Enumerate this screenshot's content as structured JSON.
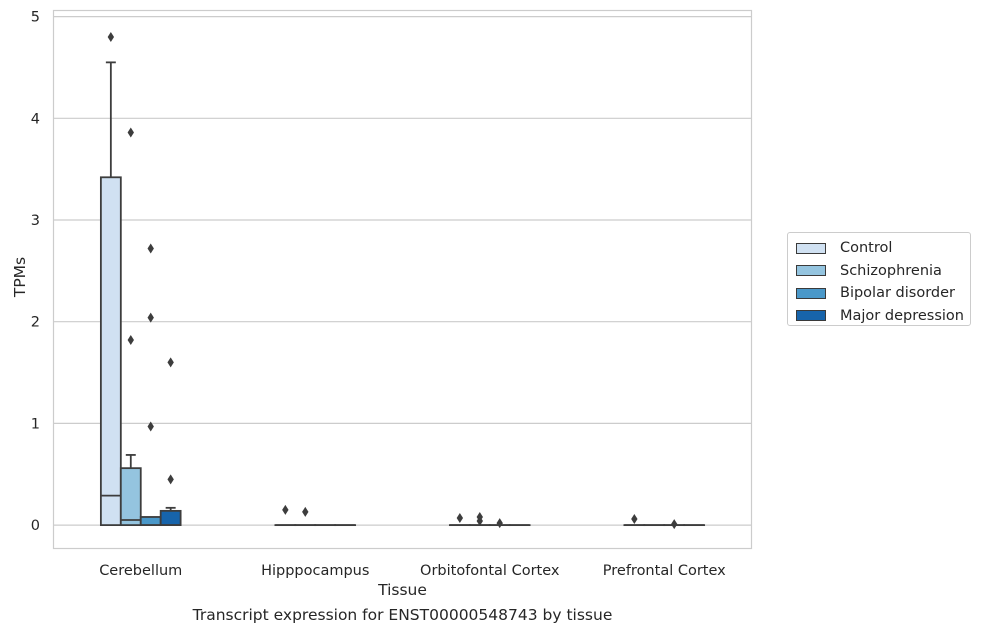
{
  "chart_data": {
    "type": "boxplot",
    "title": "Transcript expression for ENST00000548743 by tissue",
    "xlabel": "Tissue",
    "ylabel": "TPMs",
    "ylim": [
      -0.23,
      5.06
    ],
    "yticks": [
      0,
      1,
      2,
      3,
      4,
      5
    ],
    "categories": [
      "Cerebellum",
      "Hipppocampus",
      "Orbitofontal Cortex",
      "Prefrontal Cortex"
    ],
    "legend_position": "right",
    "grid": true,
    "series": [
      {
        "name": "Control",
        "color": "#d0e1f2",
        "boxes": [
          {
            "q1": 0.0,
            "median": 0.29,
            "q3": 3.42,
            "whisker_low": 0.0,
            "whisker_high": 4.55,
            "outliers": [
              4.8
            ]
          },
          {
            "q1": 0.0,
            "median": 0.0,
            "q3": 0.0,
            "whisker_low": 0.0,
            "whisker_high": 0.0,
            "outliers": [
              0.15
            ]
          },
          {
            "q1": 0.0,
            "median": 0.0,
            "q3": 0.0,
            "whisker_low": 0.0,
            "whisker_high": 0.0,
            "outliers": [
              0.07
            ]
          },
          {
            "q1": 0.0,
            "median": 0.0,
            "q3": 0.0,
            "whisker_low": 0.0,
            "whisker_high": 0.0,
            "outliers": [
              0.06
            ]
          }
        ]
      },
      {
        "name": "Schizophrenia",
        "color": "#94c4df",
        "boxes": [
          {
            "q1": 0.0,
            "median": 0.05,
            "q3": 0.56,
            "whisker_low": 0.0,
            "whisker_high": 0.69,
            "outliers": [
              3.86,
              1.82
            ]
          },
          {
            "q1": 0.0,
            "median": 0.0,
            "q3": 0.0,
            "whisker_low": 0.0,
            "whisker_high": 0.0,
            "outliers": [
              0.13
            ]
          },
          {
            "q1": 0.0,
            "median": 0.0,
            "q3": 0.0,
            "whisker_low": 0.0,
            "whisker_high": 0.0,
            "outliers": [
              0.08,
              0.04
            ]
          },
          {
            "q1": 0.0,
            "median": 0.0,
            "q3": 0.0,
            "whisker_low": 0.0,
            "whisker_high": 0.0,
            "outliers": []
          }
        ]
      },
      {
        "name": "Bipolar disorder",
        "color": "#4a98c9",
        "boxes": [
          {
            "q1": 0.0,
            "median": 0.0,
            "q3": 0.08,
            "whisker_low": 0.0,
            "whisker_high": 0.08,
            "outliers": [
              2.72,
              2.04,
              0.97
            ]
          },
          {
            "q1": 0.0,
            "median": 0.0,
            "q3": 0.0,
            "whisker_low": 0.0,
            "whisker_high": 0.0,
            "outliers": []
          },
          {
            "q1": 0.0,
            "median": 0.0,
            "q3": 0.0,
            "whisker_low": 0.0,
            "whisker_high": 0.0,
            "outliers": [
              0.02
            ]
          },
          {
            "q1": 0.0,
            "median": 0.0,
            "q3": 0.0,
            "whisker_low": 0.0,
            "whisker_high": 0.0,
            "outliers": [
              0.01
            ]
          }
        ]
      },
      {
        "name": "Major depression",
        "color": "#1764ab",
        "boxes": [
          {
            "q1": 0.0,
            "median": 0.0,
            "q3": 0.14,
            "whisker_low": 0.0,
            "whisker_high": 0.17,
            "outliers": [
              1.6,
              0.45
            ]
          },
          {
            "q1": 0.0,
            "median": 0.0,
            "q3": 0.0,
            "whisker_low": 0.0,
            "whisker_high": 0.0,
            "outliers": []
          },
          {
            "q1": 0.0,
            "median": 0.0,
            "q3": 0.0,
            "whisker_low": 0.0,
            "whisker_high": 0.0,
            "outliers": []
          },
          {
            "q1": 0.0,
            "median": 0.0,
            "q3": 0.0,
            "whisker_low": 0.0,
            "whisker_high": 0.0,
            "outliers": []
          }
        ]
      }
    ]
  }
}
